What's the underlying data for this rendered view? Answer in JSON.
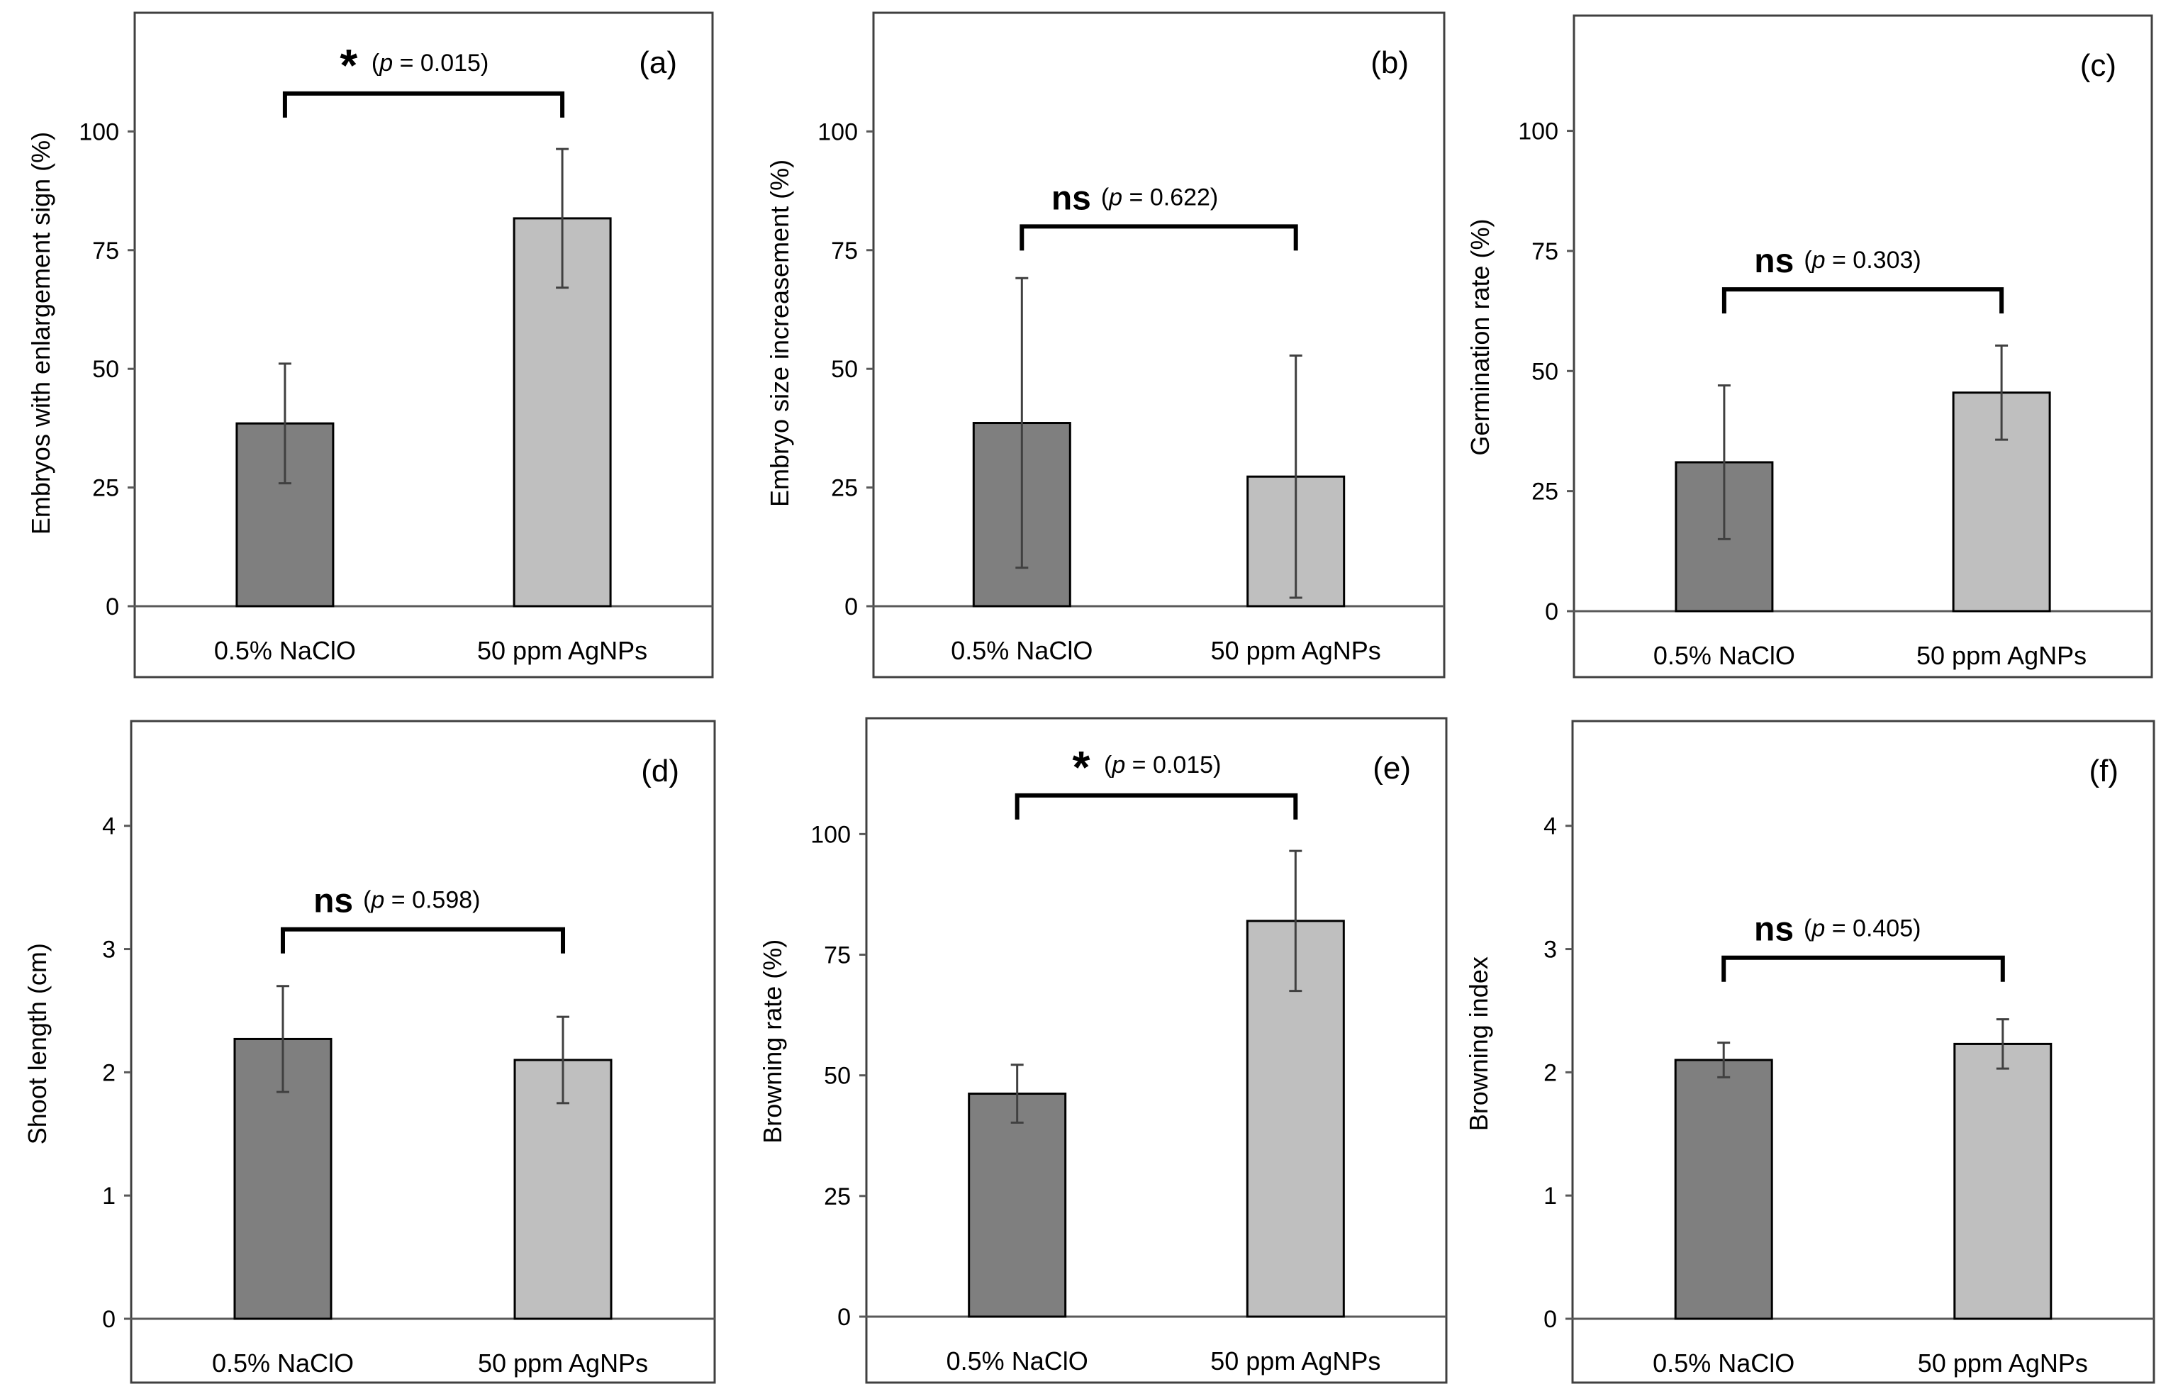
{
  "chart_data": [
    {
      "id": "a",
      "type": "bar",
      "panel_label": "(a)",
      "ylabel": "Embryos with enlargement sign (%)",
      "ylim": [
        0,
        125
      ],
      "yticks": [
        0,
        25,
        50,
        75,
        100
      ],
      "categories": [
        "0.5% NaClO",
        "50 ppm AgNPs"
      ],
      "values": [
        38.5,
        81.7
      ],
      "errors": [
        12.6,
        14.6
      ],
      "colors": [
        "#7f7f7f",
        "#bfbfbf"
      ],
      "significance": {
        "symbol": "*",
        "p_text": "= 0.015)",
        "p_open": "(",
        "p_var": "p",
        "bracket_level": 108
      }
    },
    {
      "id": "b",
      "type": "bar",
      "panel_label": "(b)",
      "ylabel": "Embryo size increasement (%)",
      "ylim": [
        0,
        125
      ],
      "yticks": [
        0,
        25,
        50,
        75,
        100
      ],
      "categories": [
        "0.5% NaClO",
        "50 ppm AgNPs"
      ],
      "values": [
        38.6,
        27.3
      ],
      "errors": [
        30.5,
        25.5
      ],
      "colors": [
        "#7f7f7f",
        "#bfbfbf"
      ],
      "significance": {
        "symbol": "ns",
        "p_text": "= 0.622)",
        "p_open": "(",
        "p_var": "p",
        "bracket_level": 80
      }
    },
    {
      "id": "c",
      "type": "bar",
      "panel_label": "(c)",
      "ylabel": "Germination rate (%)",
      "ylim": [
        0,
        124
      ],
      "yticks": [
        0,
        25,
        50,
        75,
        100
      ],
      "categories": [
        "0.5% NaClO",
        "50 ppm AgNPs"
      ],
      "values": [
        31.0,
        45.5
      ],
      "errors": [
        16.0,
        9.8
      ],
      "colors": [
        "#7f7f7f",
        "#bfbfbf"
      ],
      "significance": {
        "symbol": "ns",
        "p_text": "= 0.303)",
        "p_open": "(",
        "p_var": "p",
        "bracket_level": 67
      }
    },
    {
      "id": "d",
      "type": "bar",
      "panel_label": "(d)",
      "ylabel": "Shoot length (cm)",
      "ylim": [
        0,
        4.85
      ],
      "yticks": [
        0,
        1,
        2,
        3,
        4
      ],
      "categories": [
        "0.5% NaClO",
        "50 ppm AgNPs"
      ],
      "values": [
        2.27,
        2.1
      ],
      "errors": [
        0.43,
        0.35
      ],
      "colors": [
        "#7f7f7f",
        "#bfbfbf"
      ],
      "significance": {
        "symbol": "ns",
        "p_text": "= 0.598)",
        "p_open": "(",
        "p_var": "p",
        "bracket_level": 3.16
      }
    },
    {
      "id": "e",
      "type": "bar",
      "panel_label": "(e)",
      "ylabel": "Browning rate (%)",
      "ylim": [
        0,
        124
      ],
      "yticks": [
        0,
        25,
        50,
        75,
        100
      ],
      "categories": [
        "0.5% NaClO",
        "50 ppm AgNPs"
      ],
      "values": [
        46.2,
        82.0
      ],
      "errors": [
        6.0,
        14.5
      ],
      "colors": [
        "#7f7f7f",
        "#bfbfbf"
      ],
      "significance": {
        "symbol": "*",
        "p_text": "= 0.015)",
        "p_open": "(",
        "p_var": "p",
        "bracket_level": 108
      }
    },
    {
      "id": "f",
      "type": "bar",
      "panel_label": "(f)",
      "ylabel": "Browning index",
      "ylim": [
        0,
        4.85
      ],
      "yticks": [
        0,
        1,
        2,
        3,
        4
      ],
      "categories": [
        "0.5% NaClO",
        "50 ppm AgNPs"
      ],
      "values": [
        2.1,
        2.23
      ],
      "errors": [
        0.14,
        0.2
      ],
      "colors": [
        "#7f7f7f",
        "#bfbfbf"
      ],
      "significance": {
        "symbol": "ns",
        "p_text": "= 0.405)",
        "p_open": "(",
        "p_var": "p",
        "bracket_level": 2.93
      }
    }
  ]
}
